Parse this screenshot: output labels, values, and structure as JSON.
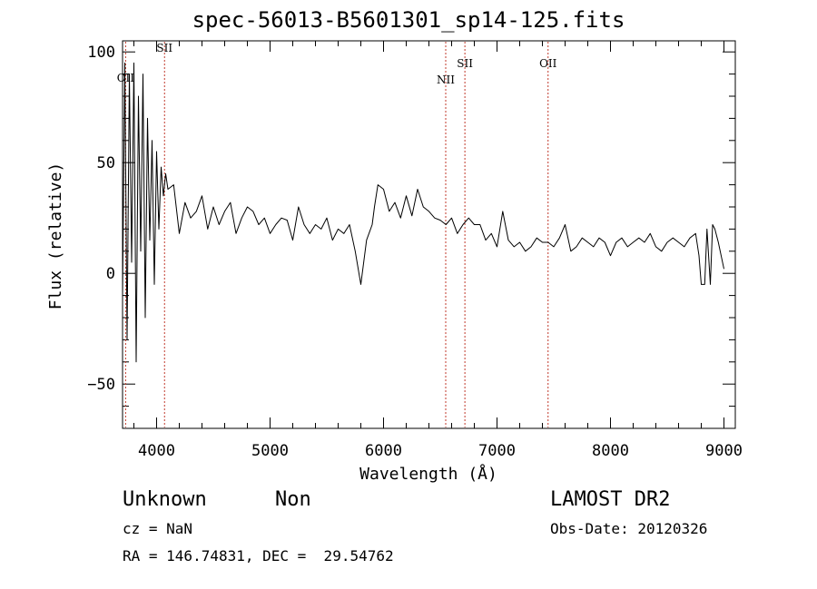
{
  "header": {
    "title": "spec-56013-B5601301_sp14-125.fits"
  },
  "info": {
    "class_label": "Unknown",
    "subclass_label": "Non",
    "cz_label": "cz = NaN",
    "coords_label": "RA = 146.74831, DEC =  29.54762",
    "survey_label": "LAMOST DR2",
    "obs_date_label": "Obs-Date: 20120326"
  },
  "chart_data": {
    "type": "line",
    "title": "spec-56013-B5601301_sp14-125.fits",
    "xlabel": "Wavelength (Å)",
    "ylabel": "Flux (relative)",
    "xlim": [
      3700,
      9100
    ],
    "ylim": [
      -70,
      105
    ],
    "xticks": [
      4000,
      5000,
      6000,
      7000,
      8000,
      9000
    ],
    "yticks": [
      -50,
      0,
      50,
      100
    ],
    "grid": false,
    "series": [
      {
        "x": [
          3700,
          3720,
          3740,
          3760,
          3780,
          3800,
          3820,
          3840,
          3860,
          3880,
          3900,
          3920,
          3940,
          3960,
          3980,
          4000,
          4020,
          4040,
          4060,
          4080,
          4100,
          4150,
          4200,
          4250,
          4300,
          4350,
          4400,
          4450,
          4500,
          4550,
          4600,
          4650,
          4700,
          4750,
          4800,
          4850,
          4900,
          4950,
          5000,
          5050,
          5100,
          5150,
          5200,
          5250,
          5300,
          5350,
          5400,
          5450,
          5500,
          5550,
          5600,
          5650,
          5700,
          5750,
          5800,
          5850,
          5900,
          5920,
          5950,
          6000,
          6050,
          6100,
          6150,
          6200,
          6250,
          6300,
          6350,
          6400,
          6450,
          6500,
          6550,
          6600,
          6650,
          6700,
          6750,
          6800,
          6850,
          6900,
          6950,
          7000,
          7050,
          7100,
          7150,
          7200,
          7250,
          7300,
          7350,
          7400,
          7450,
          7500,
          7550,
          7600,
          7650,
          7700,
          7750,
          7800,
          7850,
          7900,
          7950,
          8000,
          8050,
          8100,
          8150,
          8200,
          8250,
          8300,
          8350,
          8400,
          8450,
          8500,
          8550,
          8600,
          8650,
          8700,
          8750,
          8780,
          8800,
          8830,
          8850,
          8880,
          8900,
          8920,
          8950,
          9000
        ],
        "y": [
          -10,
          95,
          -30,
          90,
          5,
          95,
          -40,
          80,
          10,
          90,
          -20,
          70,
          15,
          60,
          -5,
          55,
          20,
          48,
          35,
          45,
          38,
          40,
          18,
          32,
          25,
          28,
          35,
          20,
          30,
          22,
          28,
          32,
          18,
          25,
          30,
          28,
          22,
          25,
          18,
          22,
          25,
          24,
          15,
          30,
          22,
          18,
          22,
          20,
          25,
          15,
          20,
          18,
          22,
          10,
          -5,
          15,
          22,
          30,
          40,
          38,
          28,
          32,
          25,
          35,
          26,
          38,
          30,
          28,
          25,
          24,
          22,
          25,
          18,
          22,
          25,
          22,
          22,
          15,
          18,
          12,
          28,
          15,
          12,
          14,
          10,
          12,
          16,
          14,
          14,
          12,
          16,
          22,
          10,
          12,
          16,
          14,
          12,
          16,
          14,
          8,
          14,
          16,
          12,
          14,
          16,
          14,
          18,
          12,
          10,
          14,
          16,
          14,
          12,
          16,
          18,
          8,
          -5,
          -5,
          20,
          -5,
          22,
          20,
          14,
          2
        ]
      }
    ],
    "lines": [
      {
        "label": "OII",
        "x": 3727
      },
      {
        "label": "SII",
        "x": 4070
      },
      {
        "label": "NII",
        "x": 6548
      },
      {
        "label": "SII",
        "x": 6717
      },
      {
        "label": "OII",
        "x": 7450
      }
    ]
  }
}
